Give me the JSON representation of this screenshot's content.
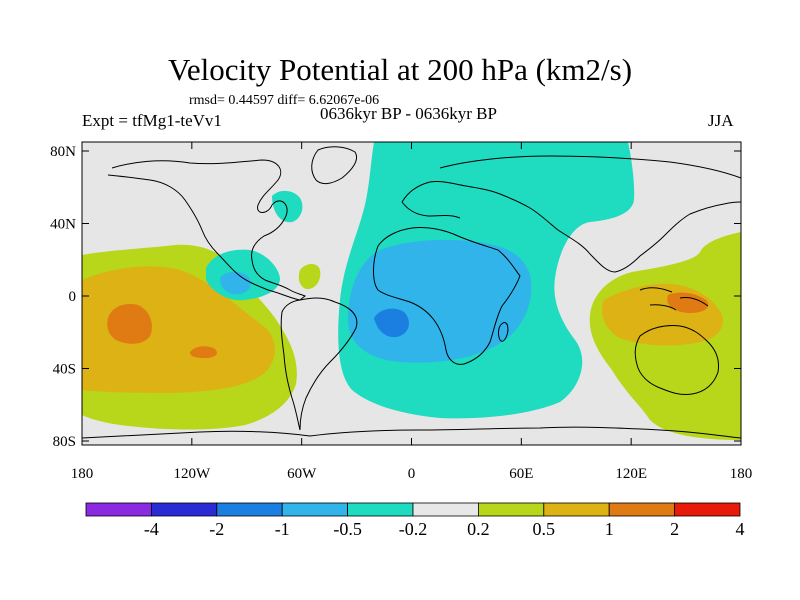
{
  "title": "Velocity Potential at 200 hPa (km2/s)",
  "subtitle_stats": "rmsd= 0.44597 diff= 6.62067e-06",
  "left_label": "Expt = tfMg1-teVv1",
  "center_label": "0636kyr BP - 0636kyr BP",
  "right_label": "JJA",
  "axes": {
    "lon_ticks": [
      "180",
      "120W",
      "60W",
      "0",
      "60E",
      "120E",
      "180"
    ],
    "lat_ticks": [
      "80N",
      "40N",
      "0",
      "40S",
      "80S"
    ]
  },
  "colorbar": {
    "labels": [
      "-4",
      "-2",
      "-1",
      "-0.5",
      "-0.2",
      "0.2",
      "0.5",
      "1",
      "2",
      "4"
    ],
    "colors": [
      "#8a2be2",
      "#2b2bd6",
      "#1a7fe0",
      "#30b4ea",
      "#1fdcc0",
      "#e8e8e8",
      "#b8d61a",
      "#dcb214",
      "#e07a12",
      "#e81a0a"
    ]
  },
  "colors": {
    "land_outline": "#000000",
    "ocean_background": "#e6e6e6",
    "strong_negative": "#1a7fe0",
    "negative": "#30b4ea",
    "weak_negative": "#1fdcc0",
    "weak_positive": "#b8d61a",
    "positive": "#dcb214",
    "strong_positive": "#e07a12"
  }
}
